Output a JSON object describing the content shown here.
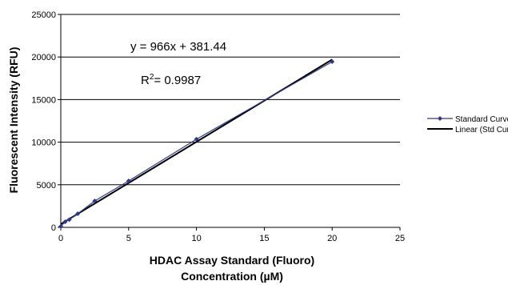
{
  "chart_data": {
    "type": "scatter",
    "xlabel_lines": [
      "HDAC Assay Standard (Fluoro)",
      "Concentration (µM)"
    ],
    "ylabel": "Fluorescent Intensity (RFU)",
    "xlim": [
      0,
      25
    ],
    "ylim": [
      0,
      25000
    ],
    "x_ticks": [
      "0",
      "5",
      "10",
      "15",
      "20",
      "25"
    ],
    "y_ticks": [
      "0",
      "5000",
      "10000",
      "15000",
      "20000",
      "25000"
    ],
    "grid": "horizontal",
    "legend_position": "right",
    "series": [
      {
        "name": "Standard Curve",
        "color": "#2e3a87",
        "marker": "diamond",
        "x": [
          0,
          0.3125,
          0.625,
          1.25,
          2.5,
          5,
          10,
          20
        ],
        "y": [
          100,
          650,
          900,
          1600,
          3100,
          5450,
          10350,
          19450
        ]
      },
      {
        "name": "Linear (Std Curve)",
        "color": "#000000",
        "type": "line",
        "slope": 966,
        "intercept": 381.44,
        "x_range": [
          0,
          20
        ]
      }
    ],
    "annotations": {
      "equation": "y = 966x + 381.44",
      "r2_prefix": "R",
      "r2_sup": "2",
      "r2_value": "= 0.9987"
    }
  }
}
